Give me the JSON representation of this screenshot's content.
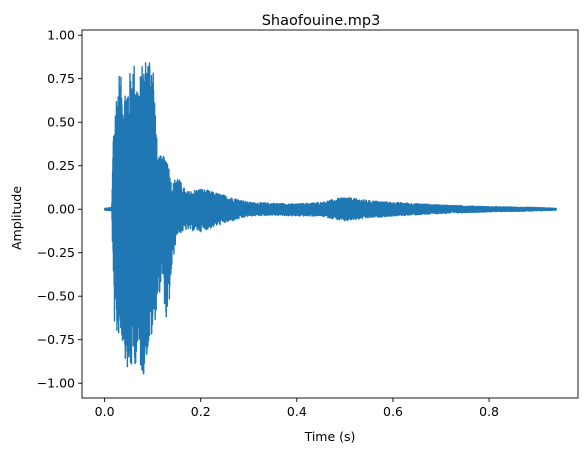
{
  "chart_data": {
    "type": "line",
    "title": "Shaofouine.mp3",
    "xlabel": "Time (s)",
    "ylabel": "Amplitude",
    "xlim": [
      -0.047,
      0.985
    ],
    "ylim": [
      -1.085,
      1.03
    ],
    "xticks": [
      0.0,
      0.2,
      0.4,
      0.6,
      0.8
    ],
    "xtick_labels": [
      "0.0",
      "0.2",
      "0.4",
      "0.6",
      "0.8"
    ],
    "yticks": [
      -1.0,
      -0.75,
      -0.5,
      -0.25,
      0.0,
      0.25,
      0.5,
      0.75,
      1.0
    ],
    "ytick_labels": [
      "−1.00",
      "−0.75",
      "−0.50",
      "−0.25",
      "0.00",
      "0.25",
      "0.50",
      "0.75",
      "1.00"
    ],
    "grid": false,
    "series": [
      {
        "color": "#1f77b4",
        "envelope": {
          "t": [
            0.0,
            0.015,
            0.018,
            0.022,
            0.03,
            0.04,
            0.05,
            0.06,
            0.07,
            0.08,
            0.09,
            0.1,
            0.11,
            0.12,
            0.13,
            0.14,
            0.15,
            0.17,
            0.2,
            0.25,
            0.3,
            0.35,
            0.4,
            0.45,
            0.5,
            0.55,
            0.6,
            0.7,
            0.8,
            0.9,
            0.94
          ],
          "upper": [
            0.005,
            0.01,
            0.45,
            0.62,
            0.8,
            0.7,
            0.76,
            0.87,
            0.73,
            0.85,
            0.9,
            0.93,
            0.32,
            0.3,
            0.32,
            0.13,
            0.2,
            0.1,
            0.12,
            0.08,
            0.04,
            0.035,
            0.03,
            0.04,
            0.07,
            0.05,
            0.04,
            0.025,
            0.015,
            0.01,
            0.005
          ],
          "lower": [
            -0.005,
            -0.01,
            -0.45,
            -0.77,
            -0.72,
            -0.8,
            -0.99,
            -0.9,
            -0.88,
            -0.97,
            -0.82,
            -0.73,
            -0.55,
            -0.4,
            -0.71,
            -0.35,
            -0.15,
            -0.12,
            -0.13,
            -0.08,
            -0.04,
            -0.035,
            -0.04,
            -0.04,
            -0.07,
            -0.05,
            -0.04,
            -0.025,
            -0.015,
            -0.01,
            -0.005
          ]
        }
      }
    ]
  }
}
